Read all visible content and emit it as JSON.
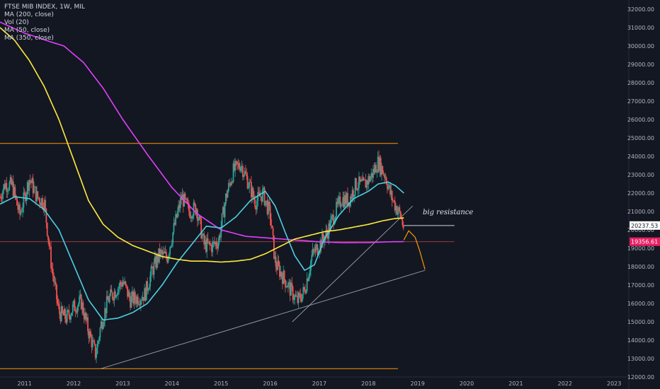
{
  "legend": {
    "symbol": "FTSE MIB INDEX, 1W, MIL",
    "items": [
      "MA (200, close)",
      "Vol (20)",
      "MA (50, close)",
      "MA (350, close)"
    ]
  },
  "annotation": "big resistance",
  "price_labels": [
    {
      "value": "20237.53",
      "bg": "#ffffff",
      "fg": "#131722"
    },
    {
      "value": "19356.61",
      "bg": "#e91e63",
      "fg": "#ffffff"
    }
  ],
  "colors": {
    "background": "#131722",
    "candle_up": "#26a69a",
    "candle_down": "#ef5350",
    "ma200": "#e040fb",
    "ma50": "#4dd0e1",
    "ma350": "#ffeb3b",
    "horizontal_lines": "#ff9800",
    "trendline": "#b2b5be",
    "projection": "#ff9800"
  },
  "chart_data": {
    "type": "line",
    "title": "FTSE MIB INDEX, 1W, MIL",
    "xlabel": "",
    "ylabel": "",
    "xlim": [
      2010.5,
      2023.3
    ],
    "ylim": [
      12000,
      32500
    ],
    "x_ticks": [
      "2011",
      "2012",
      "2013",
      "2014",
      "2015",
      "2016",
      "2017",
      "2018",
      "2019",
      "2020",
      "2021",
      "2022",
      "2023"
    ],
    "y_ticks": [
      "12000.00",
      "13000.00",
      "14000.00",
      "15000.00",
      "16000.00",
      "17000.00",
      "18000.00",
      "19000.00",
      "20000.00",
      "21000.00",
      "22000.00",
      "23000.00",
      "24000.00",
      "25000.00",
      "26000.00",
      "27000.00",
      "28000.00",
      "29000.00",
      "30000.00",
      "31000.00",
      "32000.00"
    ],
    "price": {
      "x": [
        2010.5,
        2010.6,
        2010.75,
        2010.9,
        2011.1,
        2011.25,
        2011.4,
        2011.55,
        2011.7,
        2011.85,
        2012.0,
        2012.15,
        2012.3,
        2012.45,
        2012.55,
        2012.7,
        2012.85,
        2013.0,
        2013.15,
        2013.3,
        2013.45,
        2013.6,
        2013.75,
        2013.9,
        2014.05,
        2014.2,
        2014.35,
        2014.5,
        2014.65,
        2014.8,
        2014.95,
        2015.1,
        2015.25,
        2015.4,
        2015.55,
        2015.7,
        2015.85,
        2016.0,
        2016.1,
        2016.25,
        2016.4,
        2016.55,
        2016.7,
        2016.85,
        2017.0,
        2017.15,
        2017.3,
        2017.45,
        2017.6,
        2017.75,
        2017.9,
        2018.05,
        2018.2,
        2018.35,
        2018.45,
        2018.55,
        2018.65,
        2018.72
      ],
      "close": [
        21800,
        22500,
        22400,
        20800,
        22800,
        21800,
        21500,
        18000,
        15500,
        15200,
        15800,
        16100,
        14500,
        13200,
        14800,
        16200,
        16700,
        17200,
        16200,
        16300,
        16500,
        17800,
        18700,
        18500,
        20200,
        21800,
        21000,
        21200,
        19200,
        19100,
        19400,
        21800,
        23200,
        23600,
        22600,
        21500,
        22000,
        20800,
        18200,
        17500,
        16800,
        16100,
        16700,
        18600,
        19200,
        19800,
        20800,
        21700,
        21600,
        22500,
        22400,
        22900,
        23700,
        22900,
        21900,
        21300,
        20800,
        20100
      ]
    },
    "series": [
      {
        "name": "MA (200, close)",
        "color": "#e040fb",
        "x": [
          2010.5,
          2011.0,
          2011.5,
          2011.8,
          2012.2,
          2012.6,
          2013.0,
          2013.5,
          2014.0,
          2014.5,
          2015.0,
          2015.5,
          2016.0,
          2016.5,
          2017.0,
          2017.5,
          2018.0,
          2018.5,
          2018.72
        ],
        "values": [
          31300,
          30700,
          30250,
          30000,
          29100,
          27700,
          26000,
          24100,
          22300,
          20900,
          20000,
          19650,
          19550,
          19450,
          19350,
          19300,
          19310,
          19356,
          19360
        ]
      },
      {
        "name": "MA (50, close)",
        "color": "#4dd0e1",
        "x": [
          2010.5,
          2010.8,
          2011.1,
          2011.4,
          2011.7,
          2012.0,
          2012.3,
          2012.6,
          2012.9,
          2013.2,
          2013.5,
          2013.8,
          2014.1,
          2014.4,
          2014.7,
          2015.0,
          2015.3,
          2015.6,
          2015.9,
          2016.1,
          2016.3,
          2016.5,
          2016.7,
          2016.9,
          2017.1,
          2017.4,
          2017.7,
          2018.0,
          2018.2,
          2018.4,
          2018.55,
          2018.72
        ],
        "values": [
          21400,
          21800,
          21700,
          21100,
          20000,
          18100,
          16200,
          15100,
          15200,
          15500,
          16000,
          17000,
          18200,
          19200,
          20200,
          20100,
          20700,
          21600,
          22100,
          21300,
          19900,
          18600,
          17800,
          18100,
          19500,
          20800,
          21700,
          22100,
          22500,
          22600,
          22400,
          22000
        ]
      },
      {
        "name": "MA (350, close)",
        "color": "#ffeb3b",
        "x": [
          2010.5,
          2010.8,
          2011.1,
          2011.4,
          2011.7,
          2012.0,
          2012.3,
          2012.6,
          2012.9,
          2013.2,
          2013.5,
          2013.8,
          2014.1,
          2014.4,
          2014.7,
          2015.0,
          2015.3,
          2015.6,
          2015.9,
          2016.2,
          2016.5,
          2016.8,
          2017.1,
          2017.4,
          2017.7,
          2018.0,
          2018.3,
          2018.55,
          2018.72
        ],
        "values": [
          31000,
          30300,
          29200,
          27800,
          26000,
          23800,
          21600,
          20300,
          19600,
          19150,
          18850,
          18550,
          18400,
          18300,
          18300,
          18250,
          18300,
          18400,
          18700,
          19100,
          19500,
          19700,
          19900,
          20000,
          20150,
          20300,
          20500,
          20620,
          20650
        ]
      }
    ],
    "horizontal_lines": [
      {
        "value": 24700,
        "x": [
          2010.5,
          2018.6
        ]
      },
      {
        "value": 12450,
        "x": [
          2010.5,
          2018.6
        ]
      }
    ],
    "trendlines": [
      {
        "x": [
          2012.55,
          2019.15
        ],
        "values": [
          12450,
          17800
        ]
      },
      {
        "x": [
          2016.45,
          2018.9
        ],
        "values": [
          15000,
          21300
        ]
      }
    ],
    "projection": {
      "x": [
        2018.72,
        2018.82,
        2018.95,
        2019.05,
        2019.15
      ],
      "values": [
        19450,
        19950,
        19600,
        18800,
        17850
      ]
    },
    "resistance_line": {
      "value": 20237.53,
      "x": [
        2018.72,
        2019.75
      ]
    },
    "support_line": {
      "value": 19356.61,
      "x": [
        2010.5,
        2019.75
      ]
    }
  }
}
